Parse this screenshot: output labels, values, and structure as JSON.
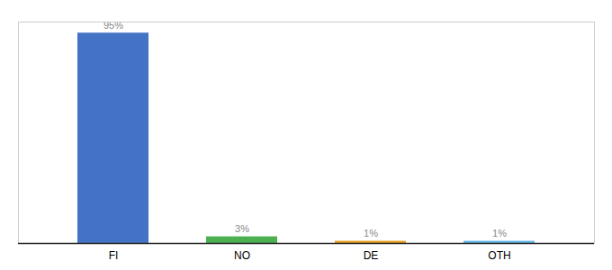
{
  "chart_data": {
    "type": "bar",
    "categories": [
      "FI",
      "NO",
      "DE",
      "OTH"
    ],
    "values": [
      95,
      3,
      1,
      1
    ],
    "value_labels": [
      "95%",
      "3%",
      "1%",
      "1%"
    ],
    "colors": [
      "#4472c4",
      "#4caf50",
      "#e8a020",
      "#64b8e8"
    ],
    "ylim": [
      0,
      100
    ],
    "grid": false,
    "data_labels": true,
    "tick_labels": "x"
  }
}
